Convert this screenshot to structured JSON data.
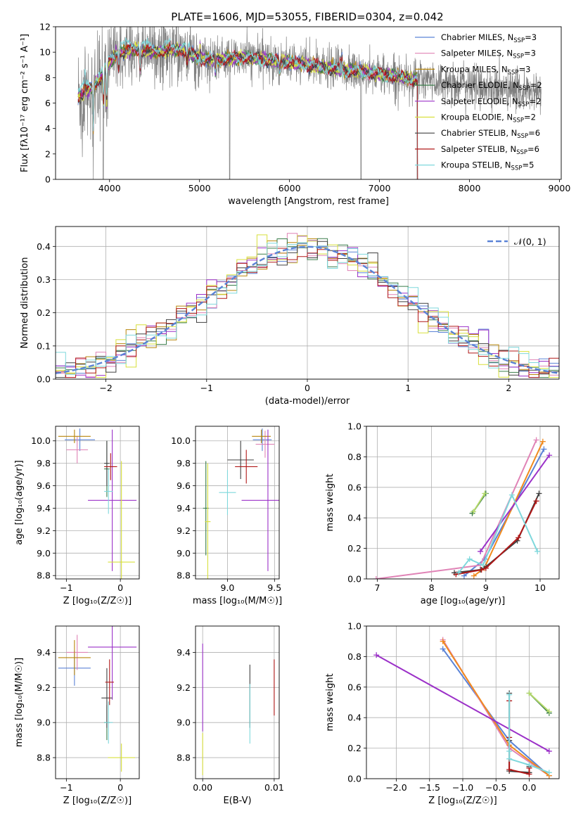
{
  "figure_title": "PLATE=1606, MJD=53055, FIBERID=0304, z=0.042",
  "colors": {
    "Chabrier MILES": "#5b83d6",
    "Salpeter MILES": "#e083b6",
    "Kroupa MILES": "#b8860b",
    "Chabrier ELODIE": "#3a7d4a",
    "Salpeter ELODIE": "#9b30c8",
    "Kroupa ELODIE": "#d8e03c",
    "Chabrier STELIB": "#404040",
    "Salpeter STELIB": "#b01818",
    "Kroupa STELIB": "#7fd8dc",
    "data": "#808080",
    "normal": "#5b83d6",
    "orange": "#f08a1e",
    "yellowgreen": "#b5d96a",
    "grid": "#b0b0b0"
  },
  "chart_data": [
    {
      "id": "spectrum",
      "type": "line",
      "title": "PLATE=1606, MJD=53055, FIBERID=0304, z=0.042",
      "xlabel": "wavelength [Angstrom, rest frame]",
      "ylabel": "Flux [fλ10⁻¹⁷ erg cm⁻² s⁻¹ A⁻¹]",
      "xlim": [
        3400,
        9020
      ],
      "ylim": [
        0,
        12
      ],
      "xticks": [
        4000,
        5000,
        6000,
        7000,
        8000,
        9000
      ],
      "yticks": [
        0,
        2,
        4,
        6,
        8,
        10,
        12
      ],
      "grid": false,
      "legend_position": "top-right",
      "legend": [
        {
          "series": "Chabrier MILES",
          "label": "Chabrier MILES, N",
          "sub": "SSP",
          "tail": "=3"
        },
        {
          "series": "Salpeter MILES",
          "label": "Salpeter MILES, N",
          "sub": "SSP",
          "tail": "=3"
        },
        {
          "series": "Kroupa MILES",
          "label": "Kroupa MILES, N",
          "sub": "SSP",
          "tail": "=3"
        },
        {
          "series": "Chabrier ELODIE",
          "label": "Chabrier ELODIE, N",
          "sub": "SSP",
          "tail": "=2"
        },
        {
          "series": "Salpeter ELODIE",
          "label": "Salpeter ELODIE, N",
          "sub": "SSP",
          "tail": "=2"
        },
        {
          "series": "Kroupa ELODIE",
          "label": "Kroupa ELODIE, N",
          "sub": "SSP",
          "tail": "=2"
        },
        {
          "series": "Chabrier STELIB",
          "label": "Chabrier STELIB, N",
          "sub": "SSP",
          "tail": "=6"
        },
        {
          "series": "Salpeter STELIB",
          "label": "Salpeter STELIB, N",
          "sub": "SSP",
          "tail": "=6"
        },
        {
          "series": "Kroupa STELIB",
          "label": "Kroupa STELIB, N",
          "sub": "SSP",
          "tail": "=5"
        }
      ],
      "continuum": [
        [
          3650,
          6.5
        ],
        [
          3800,
          7.2
        ],
        [
          3900,
          8.0
        ],
        [
          4000,
          9.2
        ],
        [
          4100,
          10.0
        ],
        [
          4300,
          10.2
        ],
        [
          4500,
          10.0
        ],
        [
          4800,
          10.2
        ],
        [
          5000,
          9.5
        ],
        [
          5200,
          9.4
        ],
        [
          5500,
          9.6
        ],
        [
          6000,
          9.2
        ],
        [
          6500,
          8.7
        ],
        [
          7000,
          8.3
        ],
        [
          7500,
          7.8
        ],
        [
          8000,
          7.4
        ],
        [
          8500,
          7.0
        ],
        [
          8800,
          6.7
        ]
      ],
      "dips": [
        [
          3820,
          3.5
        ],
        [
          3934,
          2.5
        ],
        [
          3968,
          3.0
        ],
        [
          4101,
          1.2
        ],
        [
          4340,
          1.5
        ],
        [
          4861,
          1.0
        ],
        [
          5175,
          1.0
        ],
        [
          5890,
          0.8
        ],
        [
          6563,
          0.6
        ]
      ],
      "spikes": [
        [
          3727,
          1.5
        ],
        [
          5007,
          1.0
        ],
        [
          6563,
          1.5
        ],
        [
          6583,
          1.0
        ]
      ],
      "drops": [
        [
          3930,
          0
        ],
        [
          5335,
          0
        ],
        [
          6795,
          0
        ],
        [
          7420,
          0
        ]
      ],
      "data_range": [
        3650,
        8800
      ],
      "model_range": [
        3650,
        7420
      ]
    },
    {
      "id": "residuals",
      "type": "step-histogram",
      "xlabel": "(data-model)/error",
      "ylabel": "Normed distribution",
      "xlim": [
        -2.5,
        2.5
      ],
      "ylim": [
        0,
        0.46
      ],
      "xticks": [
        -2,
        -1,
        0,
        1,
        2
      ],
      "yticks": [
        0,
        0.1,
        0.2,
        0.3,
        0.4
      ],
      "grid": true,
      "bin_width": 0.1,
      "legend_position": "top-right",
      "normal_label": "𝒩(0, 1)"
    },
    {
      "id": "z_age",
      "type": "errorbar",
      "xlabel": "Z [log₁₀(Z/Z☉)]",
      "ylabel": "age  [log₁₀(age/yr)]",
      "xlim": [
        -1.2,
        0.35
      ],
      "ylim": [
        8.77,
        10.13
      ],
      "xticks": [
        -1,
        0
      ],
      "yticks": [
        8.8,
        9.0,
        9.2,
        9.4,
        9.6,
        9.8,
        10.0
      ],
      "grid": true,
      "points": [
        {
          "series": "Chabrier MILES",
          "x": -0.75,
          "y": 10.01,
          "xerr": 0.28,
          "yerr": 0.1
        },
        {
          "series": "Salpeter MILES",
          "x": -0.8,
          "y": 9.92,
          "xerr": 0.2,
          "yerr": 0.12
        },
        {
          "series": "Kroupa MILES",
          "x": -0.85,
          "y": 10.04,
          "xerr": 0.3,
          "yerr": 0.06
        },
        {
          "series": "Chabrier ELODIE",
          "x": -0.25,
          "y": 9.75,
          "xerr": 0.05,
          "yerr": 0.25
        },
        {
          "series": "Salpeter ELODIE",
          "x": -0.15,
          "y": 9.47,
          "xerr": 0.45,
          "yerr": 0.63
        },
        {
          "series": "Kroupa ELODIE",
          "x": 0.02,
          "y": 8.92,
          "xerr": 0.25,
          "yerr": 0.9
        },
        {
          "series": "Chabrier STELIB",
          "x": -0.25,
          "y": 9.8,
          "xerr": 0.05,
          "yerr": 0.2
        },
        {
          "series": "Salpeter STELIB",
          "x": -0.18,
          "y": 9.77,
          "xerr": 0.12,
          "yerr": 0.12
        },
        {
          "series": "Kroupa STELIB",
          "x": -0.22,
          "y": 9.55,
          "xerr": 0.08,
          "yerr": 0.2
        }
      ]
    },
    {
      "id": "mass_age",
      "type": "errorbar",
      "xlabel": "mass [log₁₀(M/M☉)]",
      "ylabel": "",
      "xlim": [
        8.66,
        9.55
      ],
      "ylim": [
        8.77,
        10.13
      ],
      "xticks": [
        9.0,
        9.5
      ],
      "yticks": [
        8.8,
        9.0,
        9.2,
        9.4,
        9.6,
        9.8,
        10.0
      ],
      "grid": true,
      "points": [
        {
          "series": "Chabrier MILES",
          "x": 9.37,
          "y": 10.01,
          "xerr": 0.1,
          "yerr": 0.1
        },
        {
          "series": "Salpeter MILES",
          "x": 9.4,
          "y": 9.97,
          "xerr": 0.1,
          "yerr": 0.12
        },
        {
          "series": "Kroupa MILES",
          "x": 9.36,
          "y": 10.04,
          "xerr": 0.1,
          "yerr": 0.06
        },
        {
          "series": "Chabrier ELODIE",
          "x": 8.77,
          "y": 9.4,
          "xerr": 0.03,
          "yerr": 0.42
        },
        {
          "series": "Salpeter ELODIE",
          "x": 9.43,
          "y": 9.47,
          "xerr": 0.28,
          "yerr": 0.63
        },
        {
          "series": "Kroupa ELODIE",
          "x": 8.79,
          "y": 9.28,
          "xerr": 0.03,
          "yerr": 0.52
        },
        {
          "series": "Chabrier STELIB",
          "x": 9.14,
          "y": 9.83,
          "xerr": 0.14,
          "yerr": 0.17
        },
        {
          "series": "Salpeter STELIB",
          "x": 9.2,
          "y": 9.77,
          "xerr": 0.12,
          "yerr": 0.15
        },
        {
          "series": "Kroupa STELIB",
          "x": 9.0,
          "y": 9.54,
          "xerr": 0.09,
          "yerr": 0.2
        }
      ]
    },
    {
      "id": "age_weight",
      "type": "line",
      "xlabel": "age  [log₁₀(age/yr)]",
      "ylabel": "mass weight",
      "xlim": [
        6.8,
        10.35
      ],
      "ylim": [
        0,
        1.0
      ],
      "xticks": [
        7,
        8,
        9,
        10
      ],
      "yticks": [
        0,
        0.2,
        0.4,
        0.6,
        0.8,
        1.0
      ],
      "grid": true,
      "series": [
        {
          "series": "Chabrier MILES",
          "x": [
            8.6,
            8.98,
            10.07
          ],
          "y": [
            0.02,
            0.13,
            0.85
          ]
        },
        {
          "series": "Salpeter MILES",
          "x": [
            6.98,
            8.9,
            9.93
          ],
          "y": [
            0.0,
            0.09,
            0.91
          ]
        },
        {
          "series": "Kroupa MILES",
          "x": [
            8.78,
            8.97,
            10.05
          ],
          "y": [
            0.02,
            0.07,
            0.9
          ]
        },
        {
          "series": "Chabrier ELODIE",
          "x": [
            8.75,
            9.0
          ],
          "y": [
            0.43,
            0.56
          ]
        },
        {
          "series": "Salpeter ELODIE",
          "x": [
            8.9,
            10.17
          ],
          "y": [
            0.18,
            0.81
          ]
        },
        {
          "series": "Kroupa ELODIE",
          "x": [
            8.77,
            8.98
          ],
          "y": [
            0.44,
            0.56
          ]
        },
        {
          "series": "Chabrier STELIB",
          "x": [
            8.42,
            8.9,
            9.0,
            9.58,
            9.98
          ],
          "y": [
            0.04,
            0.06,
            0.08,
            0.25,
            0.56
          ]
        },
        {
          "series": "Salpeter STELIB",
          "x": [
            8.45,
            8.92,
            9.0,
            9.6,
            9.93
          ],
          "y": [
            0.03,
            0.06,
            0.07,
            0.27,
            0.51
          ]
        },
        {
          "series": "Kroupa STELIB",
          "x": [
            8.5,
            8.7,
            8.95,
            9.48,
            9.95
          ],
          "y": [
            0.04,
            0.13,
            0.09,
            0.55,
            0.18
          ]
        }
      ]
    },
    {
      "id": "z_mass",
      "type": "errorbar",
      "xlabel": "Z [log₁₀(Z/Z☉)]",
      "ylabel": "mass [log₁₀(M/M☉)]",
      "xlim": [
        -1.2,
        0.35
      ],
      "ylim": [
        8.68,
        9.55
      ],
      "xticks": [
        -1,
        0
      ],
      "yticks": [
        8.8,
        9.0,
        9.2,
        9.4
      ],
      "grid": true,
      "points": [
        {
          "series": "Chabrier MILES",
          "x": -0.85,
          "y": 9.31,
          "xerr": 0.3,
          "yerr": 0.1
        },
        {
          "series": "Salpeter MILES",
          "x": -0.8,
          "y": 9.4,
          "xerr": 0.2,
          "yerr": 0.1
        },
        {
          "series": "Kroupa MILES",
          "x": -0.85,
          "y": 9.37,
          "xerr": 0.3,
          "yerr": 0.1
        },
        {
          "series": "Chabrier ELODIE",
          "x": -0.25,
          "y": 9.0,
          "xerr": 0.05,
          "yerr": 0.1
        },
        {
          "series": "Salpeter ELODIE",
          "x": -0.15,
          "y": 9.43,
          "xerr": 0.45,
          "yerr": 0.3
        },
        {
          "series": "Kroupa ELODIE",
          "x": 0.02,
          "y": 8.8,
          "xerr": 0.25,
          "yerr": 0.08
        },
        {
          "series": "Chabrier STELIB",
          "x": -0.25,
          "y": 9.14,
          "xerr": 0.1,
          "yerr": 0.17
        },
        {
          "series": "Salpeter STELIB",
          "x": -0.2,
          "y": 9.23,
          "xerr": 0.08,
          "yerr": 0.13
        },
        {
          "series": "Kroupa STELIB",
          "x": -0.22,
          "y": 9.0,
          "xerr": 0.08,
          "yerr": 0.12
        }
      ]
    },
    {
      "id": "ebv_mass",
      "type": "errorbar",
      "xlabel": "E(B-V)",
      "ylabel": "",
      "xlim": [
        -0.001,
        0.0107
      ],
      "ylim": [
        8.68,
        9.55
      ],
      "xticks": [
        0.0,
        0.01
      ],
      "yticks": [
        8.8,
        9.0,
        9.2,
        9.4
      ],
      "grid": true,
      "points": [
        {
          "series": "Salpeter ELODIE",
          "x": 0.0,
          "y": 9.2,
          "xerr": 0,
          "yerr": 0.25
        },
        {
          "series": "Kroupa ELODIE",
          "x": 0.0,
          "y": 8.82,
          "xerr": 0,
          "yerr": 0.12
        },
        {
          "series": "Chabrier STELIB",
          "x": 0.0066,
          "y": 9.15,
          "xerr": 0,
          "yerr": 0.18
        },
        {
          "series": "Kroupa STELIB",
          "x": 0.0066,
          "y": 9.05,
          "xerr": 0,
          "yerr": 0.17
        },
        {
          "series": "Salpeter STELIB",
          "x": 0.01,
          "y": 9.2,
          "xerr": 0,
          "yerr": 0.16
        }
      ]
    },
    {
      "id": "z_weight",
      "type": "line",
      "xlabel": "Z [log₁₀(Z/Z☉)]",
      "ylabel": "mass weight",
      "xlim": [
        -2.45,
        0.45
      ],
      "ylim": [
        0,
        1.0
      ],
      "xticks": [
        -2.0,
        -1.5,
        -1.0,
        -0.5,
        0.0
      ],
      "yticks": [
        0,
        0.2,
        0.4,
        0.6,
        0.8,
        1.0
      ],
      "grid": true,
      "series": [
        {
          "series": "Chabrier MILES",
          "x": [
            -1.3,
            -0.3,
            0.3
          ],
          "y": [
            0.85,
            0.25,
            0.02
          ]
        },
        {
          "series": "Salpeter MILES",
          "x": [
            -1.3,
            -0.3,
            0.3
          ],
          "y": [
            0.91,
            0.2,
            0.02
          ]
        },
        {
          "series": "Kroupa MILES",
          "x": [
            -1.3,
            -0.3,
            0.3
          ],
          "y": [
            0.9,
            0.22,
            0.02
          ]
        },
        {
          "series": "Chabrier ELODIE",
          "x": [
            0.0,
            0.3
          ],
          "y": [
            0.56,
            0.43
          ]
        },
        {
          "series": "Salpeter ELODIE",
          "x": [
            -2.3,
            0.3
          ],
          "y": [
            0.81,
            0.18
          ]
        },
        {
          "series": "Kroupa ELODIE",
          "x": [
            0.0,
            0.3
          ],
          "y": [
            0.56,
            0.44
          ]
        },
        {
          "series": "Chabrier STELIB",
          "x": [
            -0.3,
            -0.3,
            -0.3,
            0.0,
            0.0
          ],
          "y": [
            0.56,
            0.25,
            0.05,
            0.04,
            0.08
          ]
        },
        {
          "series": "Salpeter STELIB",
          "x": [
            -0.3,
            -0.3,
            -0.3,
            0.0,
            0.0
          ],
          "y": [
            0.51,
            0.27,
            0.06,
            0.03,
            0.07
          ]
        },
        {
          "series": "Kroupa STELIB",
          "x": [
            -0.3,
            -0.3,
            -0.3,
            0.0,
            0.3
          ],
          "y": [
            0.55,
            0.18,
            0.13,
            0.09,
            0.04
          ]
        }
      ]
    }
  ]
}
